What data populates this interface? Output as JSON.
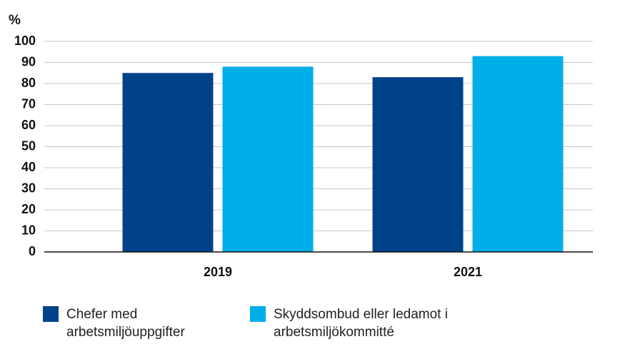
{
  "chart_data": {
    "type": "bar",
    "y_label": "%",
    "categories": [
      "2019",
      "2021"
    ],
    "series": [
      {
        "name": "Chefer med arbetsmiljöuppgifter",
        "color": "#00428a",
        "values": [
          85,
          83
        ]
      },
      {
        "name": "Skyddsombud eller ledamot i arbetsmiljökommitté",
        "color": "#00aee8",
        "values": [
          88,
          93
        ]
      }
    ],
    "ylim": [
      0,
      100
    ],
    "yticks": [
      0,
      10,
      20,
      30,
      40,
      50,
      60,
      70,
      80,
      90,
      100
    ],
    "grid": true
  }
}
